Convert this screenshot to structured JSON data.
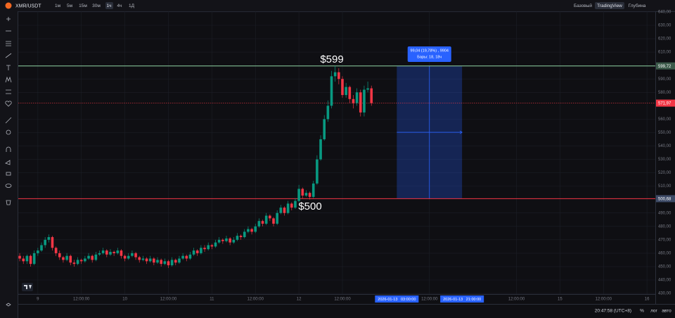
{
  "ui": {
    "symbol": "XMR/USDT",
    "intervals": [
      "1м",
      "5м",
      "15м",
      "30м",
      "1ч",
      "4ч",
      "1Д"
    ],
    "views": [
      "Базовый",
      "TradingView",
      "Глубина"
    ],
    "clock": "20:47:58 (UTC+8)",
    "scale_buttons": [
      "%",
      "лог",
      "авто"
    ]
  },
  "chart_data": {
    "type": "candlestick",
    "up_color": "#089981",
    "down_color": "#f23645",
    "grid": true,
    "xlim": [
      -5.4,
      170.3
    ],
    "ylim": [
      429.5,
      640.5
    ],
    "xticks": [
      {
        "value": 0,
        "label": "9"
      },
      {
        "value": 12,
        "label": "12:00:00"
      },
      {
        "value": 24,
        "label": "10"
      },
      {
        "value": 36,
        "label": "12:00:00"
      },
      {
        "value": 48,
        "label": "11"
      },
      {
        "value": 60,
        "label": "12:00:00"
      },
      {
        "value": 72,
        "label": "12"
      },
      {
        "value": 84,
        "label": "12:00:00"
      },
      {
        "value": 108,
        "label": "12:00:00"
      },
      {
        "value": 132,
        "label": "12:00:00"
      },
      {
        "value": 144,
        "label": "15"
      },
      {
        "value": 156,
        "label": "12:00:00"
      },
      {
        "value": 168,
        "label": "16"
      }
    ],
    "yticks": [
      {
        "value": 430,
        "label": "430,00"
      },
      {
        "value": 440,
        "label": "440,00"
      },
      {
        "value": 450,
        "label": "450,00"
      },
      {
        "value": 460,
        "label": "460,00"
      },
      {
        "value": 470,
        "label": "470,00"
      },
      {
        "value": 480,
        "label": "480,00"
      },
      {
        "value": 490,
        "label": "490,00"
      },
      {
        "value": 510,
        "label": "510,00"
      },
      {
        "value": 520,
        "label": "520,00"
      },
      {
        "value": 530,
        "label": "530,00"
      },
      {
        "value": 540,
        "label": "540,00"
      },
      {
        "value": 550,
        "label": "550,00"
      },
      {
        "value": 560,
        "label": "560,00"
      },
      {
        "value": 580,
        "label": "580,00"
      },
      {
        "value": 590,
        "label": "590,00"
      },
      {
        "value": 610,
        "label": "610,00"
      },
      {
        "value": 620,
        "label": "620,00"
      },
      {
        "value": 630,
        "label": "630,00"
      },
      {
        "value": 640,
        "label": "640,00"
      }
    ],
    "x": [
      -5,
      -4,
      -3,
      -2,
      -1,
      0,
      1,
      2,
      3,
      4,
      5,
      6,
      7,
      8,
      9,
      10,
      11,
      12,
      13,
      14,
      15,
      16,
      17,
      18,
      19,
      20,
      21,
      22,
      23,
      24,
      25,
      26,
      27,
      28,
      29,
      30,
      31,
      32,
      33,
      34,
      35,
      36,
      37,
      38,
      39,
      40,
      41,
      42,
      43,
      44,
      45,
      46,
      47,
      48,
      49,
      50,
      51,
      52,
      53,
      54,
      55,
      56,
      57,
      58,
      59,
      60,
      61,
      62,
      63,
      64,
      65,
      66,
      67,
      68,
      69,
      70,
      71,
      72,
      73,
      74,
      75,
      76,
      77,
      78,
      79,
      80,
      81,
      82,
      83,
      84,
      85,
      86,
      87,
      88,
      89,
      90,
      91,
      92
    ],
    "ohlc": [
      [
        458,
        460,
        454,
        456
      ],
      [
        456,
        458,
        452,
        454
      ],
      [
        454,
        459,
        452,
        458
      ],
      [
        458,
        459,
        450,
        452
      ],
      [
        452,
        462,
        451,
        460
      ],
      [
        460,
        464,
        458,
        462
      ],
      [
        462,
        468,
        461,
        466
      ],
      [
        466,
        472,
        464,
        470
      ],
      [
        470,
        474,
        468,
        472
      ],
      [
        472,
        473,
        462,
        464
      ],
      [
        464,
        465,
        458,
        460
      ],
      [
        460,
        462,
        455,
        457
      ],
      [
        457,
        458,
        453,
        455
      ],
      [
        455,
        460,
        454,
        458
      ],
      [
        458,
        459,
        451,
        453
      ],
      [
        453,
        455,
        450,
        452
      ],
      [
        452,
        457,
        451,
        455
      ],
      [
        455,
        456,
        452,
        454
      ],
      [
        454,
        458,
        453,
        456
      ],
      [
        456,
        460,
        455,
        458
      ],
      [
        458,
        459,
        453,
        455
      ],
      [
        455,
        461,
        454,
        459
      ],
      [
        459,
        462,
        458,
        460
      ],
      [
        460,
        464,
        459,
        462
      ],
      [
        462,
        463,
        457,
        459
      ],
      [
        459,
        463,
        458,
        461
      ],
      [
        461,
        462,
        458,
        460
      ],
      [
        460,
        464,
        459,
        462
      ],
      [
        462,
        463,
        456,
        458
      ],
      [
        458,
        459,
        454,
        456
      ],
      [
        456,
        460,
        455,
        458
      ],
      [
        458,
        462,
        457,
        460
      ],
      [
        460,
        461,
        455,
        457
      ],
      [
        457,
        458,
        453,
        455
      ],
      [
        455,
        458,
        454,
        456
      ],
      [
        456,
        457,
        452,
        454
      ],
      [
        454,
        458,
        453,
        456
      ],
      [
        456,
        457,
        451,
        453
      ],
      [
        453,
        457,
        452,
        455
      ],
      [
        455,
        456,
        450,
        452
      ],
      [
        452,
        456,
        451,
        454
      ],
      [
        454,
        455,
        449,
        451
      ],
      [
        451,
        457,
        450,
        455
      ],
      [
        455,
        456,
        451,
        453
      ],
      [
        453,
        458,
        452,
        456
      ],
      [
        456,
        460,
        455,
        458
      ],
      [
        458,
        459,
        454,
        456
      ],
      [
        456,
        461,
        455,
        459
      ],
      [
        459,
        464,
        458,
        462
      ],
      [
        462,
        463,
        458,
        460
      ],
      [
        460,
        466,
        459,
        464
      ],
      [
        464,
        466,
        461,
        463
      ],
      [
        463,
        468,
        462,
        466
      ],
      [
        466,
        467,
        463,
        465
      ],
      [
        465,
        470,
        464,
        468
      ],
      [
        468,
        472,
        467,
        470
      ],
      [
        470,
        471,
        467,
        469
      ],
      [
        469,
        473,
        468,
        471
      ],
      [
        471,
        472,
        466,
        468
      ],
      [
        468,
        472,
        467,
        470
      ],
      [
        470,
        475,
        469,
        473
      ],
      [
        473,
        474,
        470,
        472
      ],
      [
        472,
        478,
        471,
        476
      ],
      [
        476,
        480,
        475,
        478
      ],
      [
        478,
        479,
        474,
        476
      ],
      [
        476,
        482,
        475,
        480
      ],
      [
        480,
        486,
        479,
        484
      ],
      [
        484,
        485,
        480,
        482
      ],
      [
        482,
        490,
        481,
        488
      ],
      [
        488,
        489,
        484,
        486
      ],
      [
        486,
        487,
        480,
        482
      ],
      [
        482,
        492,
        481,
        490
      ],
      [
        490,
        496,
        489,
        494
      ],
      [
        494,
        495,
        488,
        490
      ],
      [
        490,
        499,
        489,
        497
      ],
      [
        497,
        498,
        492,
        494
      ],
      [
        494,
        501,
        493,
        499
      ],
      [
        499,
        511,
        498,
        508
      ],
      [
        508,
        509,
        501,
        503
      ],
      [
        503,
        507,
        502,
        505
      ],
      [
        505,
        506,
        500,
        502
      ],
      [
        502,
        514,
        501,
        512
      ],
      [
        512,
        533,
        511,
        530
      ],
      [
        530,
        548,
        529,
        545
      ],
      [
        545,
        563,
        544,
        560
      ],
      [
        560,
        574,
        558,
        570
      ],
      [
        570,
        596,
        568,
        592
      ],
      [
        592,
        599.72,
        588,
        595
      ],
      [
        595,
        598,
        586,
        590
      ],
      [
        590,
        592,
        576,
        578
      ],
      [
        578,
        587,
        576,
        584
      ],
      [
        584,
        585,
        572,
        575
      ],
      [
        575,
        578,
        568,
        572
      ],
      [
        572,
        583,
        570,
        580
      ],
      [
        580,
        582,
        562,
        565
      ],
      [
        565,
        585,
        562,
        582
      ],
      [
        582,
        588,
        580,
        583
      ],
      [
        583,
        585,
        570,
        571.97
      ]
    ],
    "hlines": [
      {
        "value": 599.72,
        "label": "599,72",
        "color": "#8fd3a4",
        "label_color": "#3c5a4a",
        "style": "solid"
      },
      {
        "value": 571.97,
        "label": "571,97",
        "color": "#f23645",
        "label_color": "#f23645",
        "style": "dotted"
      },
      {
        "value": 500.68,
        "label": "500,68",
        "color": "#f23645",
        "label_color": "#3d4a66",
        "style": "solid"
      }
    ],
    "annotations": [
      "$599",
      "$500"
    ],
    "measure": {
      "x": [
        99,
        117
      ],
      "y": [
        500.68,
        599.72
      ],
      "color": "#2962ff",
      "text": [
        "99,04 (19,78%) , 9904",
        "Бары: 18, 18ч"
      ],
      "x_labels": [
        "2026-01-13   03:00:00",
        "2026-01-13   21:00:00"
      ]
    }
  }
}
